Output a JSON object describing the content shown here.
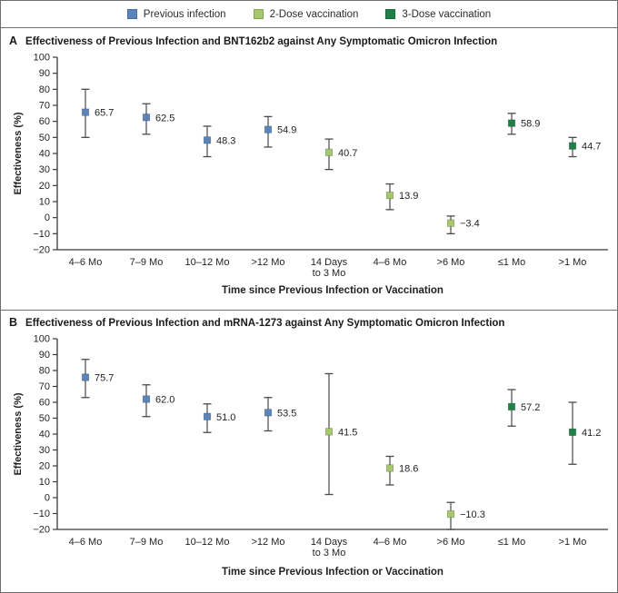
{
  "legend": {
    "items": [
      {
        "label": "Previous infection",
        "color": "#5b84ba"
      },
      {
        "label": "2-Dose vaccination",
        "color": "#a6c86d"
      },
      {
        "label": "3-Dose vaccination",
        "color": "#1f8048"
      }
    ]
  },
  "styles": {
    "error_bar_color": "#4a4a4c",
    "text_color": "#231f20",
    "axis_color": "#3a3a3c",
    "border_color": "#6e6e70"
  },
  "chart_data": [
    {
      "type": "scatter",
      "panel_letter": "A",
      "title": "Effectiveness of Previous Infection and BNT162b2 against Any Symptomatic Omicron Infection",
      "xlabel": "Time since Previous Infection or Vaccination",
      "ylabel": "Effectiveness (%)",
      "ylim": [
        -20,
        100
      ],
      "ytick_step": 10,
      "grid": false,
      "legend_position": "top",
      "categories": [
        "4–6 Mo",
        "7–9 Mo",
        "10–12 Mo",
        ">12 Mo",
        "14 Days\nto 3 Mo",
        "4–6 Mo",
        ">6 Mo",
        "≤1 Mo",
        ">1 Mo"
      ],
      "points": [
        {
          "series": "Previous infection",
          "category": "4–6 Mo",
          "value": 65.7,
          "label": "65.7",
          "ci": [
            50,
            80
          ]
        },
        {
          "series": "Previous infection",
          "category": "7–9 Mo",
          "value": 62.5,
          "label": "62.5",
          "ci": [
            52,
            71
          ]
        },
        {
          "series": "Previous infection",
          "category": "10–12 Mo",
          "value": 48.3,
          "label": "48.3",
          "ci": [
            38,
            57
          ]
        },
        {
          "series": "Previous infection",
          "category": ">12 Mo",
          "value": 54.9,
          "label": "54.9",
          "ci": [
            44,
            63
          ]
        },
        {
          "series": "2-Dose vaccination",
          "category": "14 Days\nto 3 Mo",
          "value": 40.7,
          "label": "40.7",
          "ci": [
            30,
            49
          ]
        },
        {
          "series": "2-Dose vaccination",
          "category": "4–6 Mo",
          "value": 13.9,
          "label": "13.9",
          "ci": [
            5,
            21
          ]
        },
        {
          "series": "2-Dose vaccination",
          "category": ">6 Mo",
          "value": -3.4,
          "label": "−3.4",
          "ci": [
            -10,
            1
          ]
        },
        {
          "series": "3-Dose vaccination",
          "category": "≤1 Mo",
          "value": 58.9,
          "label": "58.9",
          "ci": [
            52,
            65
          ]
        },
        {
          "series": "3-Dose vaccination",
          "category": ">1 Mo",
          "value": 44.7,
          "label": "44.7",
          "ci": [
            38,
            50
          ]
        }
      ]
    },
    {
      "type": "scatter",
      "panel_letter": "B",
      "title": "Effectiveness of Previous Infection and mRNA-1273 against Any Symptomatic Omicron Infection",
      "xlabel": "Time since Previous Infection or Vaccination",
      "ylabel": "Effectiveness (%)",
      "ylim": [
        -20,
        100
      ],
      "ytick_step": 10,
      "grid": false,
      "legend_position": "top",
      "categories": [
        "4–6 Mo",
        "7–9 Mo",
        "10–12 Mo",
        ">12 Mo",
        "14 Days\nto 3 Mo",
        "4–6 Mo",
        ">6 Mo",
        "≤1 Mo",
        ">1 Mo"
      ],
      "points": [
        {
          "series": "Previous infection",
          "category": "4–6 Mo",
          "value": 75.7,
          "label": "75.7",
          "ci": [
            63,
            87
          ]
        },
        {
          "series": "Previous infection",
          "category": "7–9 Mo",
          "value": 62.0,
          "label": "62.0",
          "ci": [
            51,
            71
          ]
        },
        {
          "series": "Previous infection",
          "category": "10–12 Mo",
          "value": 51.0,
          "label": "51.0",
          "ci": [
            41,
            59
          ]
        },
        {
          "series": "Previous infection",
          "category": ">12 Mo",
          "value": 53.5,
          "label": "53.5",
          "ci": [
            42,
            63
          ]
        },
        {
          "series": "2-Dose vaccination",
          "category": "14 Days\nto 3 Mo",
          "value": 41.5,
          "label": "41.5",
          "ci": [
            2,
            78
          ]
        },
        {
          "series": "2-Dose vaccination",
          "category": "4–6 Mo",
          "value": 18.6,
          "label": "18.6",
          "ci": [
            8,
            26
          ]
        },
        {
          "series": "2-Dose vaccination",
          "category": ">6 Mo",
          "value": -10.3,
          "label": "−10.3",
          "ci": [
            -20,
            -3
          ]
        },
        {
          "series": "3-Dose vaccination",
          "category": "≤1 Mo",
          "value": 57.2,
          "label": "57.2",
          "ci": [
            45,
            68
          ]
        },
        {
          "series": "3-Dose vaccination",
          "category": ">1 Mo",
          "value": 41.2,
          "label": "41.2",
          "ci": [
            21,
            60
          ]
        }
      ]
    }
  ]
}
